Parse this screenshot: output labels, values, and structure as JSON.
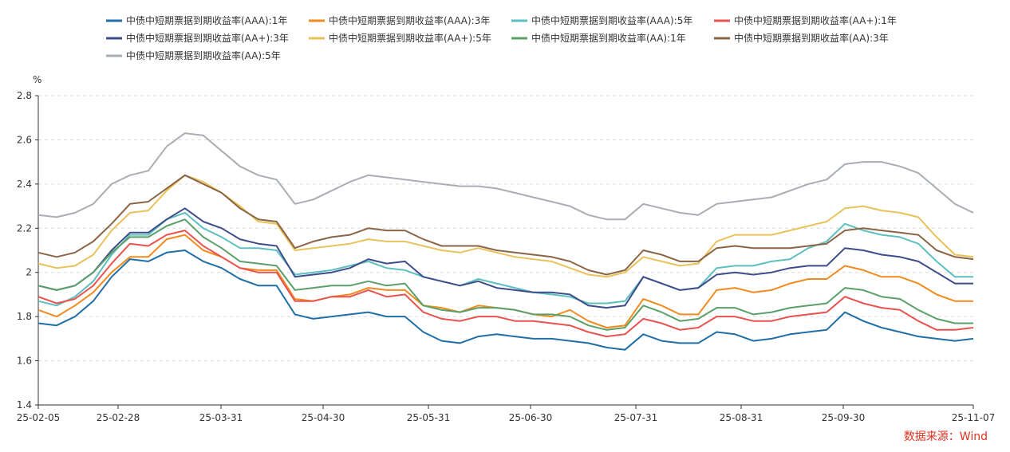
{
  "chart_data": {
    "type": "line",
    "y_unit": "%",
    "ylim": [
      1.4,
      2.8
    ],
    "y_ticks": [
      "1.4",
      "1.6",
      "1.8",
      "2",
      "2.2",
      "2.4",
      "2.6",
      "2.8"
    ],
    "x_ticks": [
      "25-02-05",
      "25-02-28",
      "25-03-31",
      "25-04-30",
      "25-05-31",
      "25-06-30",
      "25-07-31",
      "25-08-31",
      "25-09-30",
      "25-11-07"
    ],
    "grid": "horizontal-dashed",
    "legend_position": "top",
    "series": [
      {
        "name": "中债中短期票据到期收益率(AAA):1年",
        "color": "#1f6fa6",
        "values": [
          1.77,
          1.76,
          1.8,
          1.87,
          1.98,
          2.06,
          2.05,
          2.09,
          2.1,
          2.05,
          2.02,
          1.97,
          1.94,
          1.94,
          1.81,
          1.79,
          1.8,
          1.81,
          1.82,
          1.8,
          1.8,
          1.73,
          1.69,
          1.68,
          1.71,
          1.72,
          1.71,
          1.7,
          1.7,
          1.69,
          1.68,
          1.66,
          1.65,
          1.72,
          1.69,
          1.68,
          1.68,
          1.73,
          1.72,
          1.69,
          1.7,
          1.72,
          1.73,
          1.74,
          1.82,
          1.78,
          1.75,
          1.73,
          1.71,
          1.7,
          1.69,
          1.7
        ]
      },
      {
        "name": "中债中短期票据到期收益率(AAA):3年",
        "color": "#f28a1e",
        "values": [
          1.83,
          1.8,
          1.85,
          1.91,
          2.0,
          2.07,
          2.07,
          2.15,
          2.17,
          2.1,
          2.07,
          2.02,
          2.01,
          2.01,
          1.88,
          1.87,
          1.89,
          1.9,
          1.93,
          1.92,
          1.92,
          1.85,
          1.84,
          1.82,
          1.85,
          1.84,
          1.83,
          1.81,
          1.8,
          1.83,
          1.78,
          1.75,
          1.76,
          1.88,
          1.85,
          1.81,
          1.81,
          1.92,
          1.93,
          1.91,
          1.92,
          1.95,
          1.97,
          1.97,
          2.03,
          2.01,
          1.98,
          1.98,
          1.95,
          1.9,
          1.87,
          1.87
        ]
      },
      {
        "name": "中债中短期票据到期收益率(AAA):5年",
        "color": "#5dbfbf",
        "values": [
          1.87,
          1.85,
          1.89,
          1.96,
          2.08,
          2.17,
          2.17,
          2.24,
          2.27,
          2.2,
          2.16,
          2.11,
          2.11,
          2.1,
          1.99,
          2.0,
          2.01,
          2.03,
          2.05,
          2.02,
          2.01,
          1.98,
          1.96,
          1.94,
          1.97,
          1.95,
          1.93,
          1.91,
          1.9,
          1.89,
          1.86,
          1.86,
          1.87,
          1.98,
          1.95,
          1.92,
          1.93,
          2.02,
          2.03,
          2.03,
          2.05,
          2.06,
          2.11,
          2.14,
          2.22,
          2.19,
          2.17,
          2.16,
          2.13,
          2.05,
          1.98,
          1.98
        ]
      },
      {
        "name": "中债中短期票据到期收益率(AA+):1年",
        "color": "#e8534f",
        "values": [
          1.89,
          1.86,
          1.88,
          1.94,
          2.04,
          2.13,
          2.12,
          2.17,
          2.19,
          2.12,
          2.07,
          2.02,
          2.0,
          2.0,
          1.87,
          1.87,
          1.89,
          1.89,
          1.92,
          1.89,
          1.9,
          1.82,
          1.79,
          1.78,
          1.8,
          1.8,
          1.78,
          1.78,
          1.77,
          1.76,
          1.73,
          1.71,
          1.72,
          1.79,
          1.77,
          1.74,
          1.75,
          1.8,
          1.8,
          1.78,
          1.78,
          1.8,
          1.81,
          1.82,
          1.89,
          1.86,
          1.84,
          1.83,
          1.78,
          1.74,
          1.74,
          1.75
        ]
      },
      {
        "name": "中债中短期票据到期收益率(AA+):3年",
        "color": "#3f4c8a",
        "values": [
          1.94,
          1.92,
          1.94,
          2.0,
          2.1,
          2.18,
          2.18,
          2.24,
          2.29,
          2.23,
          2.2,
          2.15,
          2.13,
          2.12,
          1.98,
          1.99,
          2.0,
          2.02,
          2.06,
          2.04,
          2.05,
          1.98,
          1.96,
          1.94,
          1.96,
          1.93,
          1.92,
          1.91,
          1.91,
          1.9,
          1.85,
          1.84,
          1.85,
          1.98,
          1.95,
          1.92,
          1.93,
          1.99,
          2.0,
          1.99,
          2.0,
          2.02,
          2.03,
          2.03,
          2.11,
          2.1,
          2.08,
          2.07,
          2.05,
          2.0,
          1.95,
          1.95
        ]
      },
      {
        "name": "中债中短期票据到期收益率(AA+):5年",
        "color": "#e8c25a",
        "values": [
          2.04,
          2.02,
          2.03,
          2.08,
          2.19,
          2.27,
          2.28,
          2.37,
          2.44,
          2.41,
          2.36,
          2.3,
          2.23,
          2.22,
          2.1,
          2.11,
          2.12,
          2.13,
          2.15,
          2.14,
          2.14,
          2.12,
          2.1,
          2.09,
          2.11,
          2.09,
          2.07,
          2.06,
          2.05,
          2.02,
          1.99,
          1.98,
          2.0,
          2.07,
          2.05,
          2.03,
          2.04,
          2.14,
          2.17,
          2.17,
          2.17,
          2.19,
          2.21,
          2.23,
          2.29,
          2.3,
          2.28,
          2.27,
          2.25,
          2.16,
          2.08,
          2.07
        ]
      },
      {
        "name": "中债中短期票据到期收益率(AA):1年",
        "color": "#5aa068",
        "values": [
          1.94,
          1.92,
          1.94,
          2.0,
          2.09,
          2.16,
          2.16,
          2.21,
          2.24,
          2.16,
          2.11,
          2.05,
          2.04,
          2.03,
          1.92,
          1.93,
          1.94,
          1.94,
          1.96,
          1.94,
          1.95,
          1.85,
          1.83,
          1.82,
          1.84,
          1.84,
          1.83,
          1.81,
          1.81,
          1.8,
          1.76,
          1.74,
          1.75,
          1.85,
          1.82,
          1.78,
          1.79,
          1.84,
          1.84,
          1.81,
          1.82,
          1.84,
          1.85,
          1.86,
          1.93,
          1.92,
          1.89,
          1.88,
          1.83,
          1.79,
          1.77,
          1.77
        ]
      },
      {
        "name": "中债中短期票据到期收益率(AA):3年",
        "color": "#8b6446",
        "values": [
          2.09,
          2.07,
          2.09,
          2.14,
          2.22,
          2.31,
          2.32,
          2.38,
          2.44,
          2.4,
          2.36,
          2.29,
          2.24,
          2.23,
          2.11,
          2.14,
          2.16,
          2.17,
          2.2,
          2.19,
          2.19,
          2.15,
          2.12,
          2.12,
          2.12,
          2.1,
          2.09,
          2.08,
          2.07,
          2.05,
          2.01,
          1.99,
          2.01,
          2.1,
          2.08,
          2.05,
          2.05,
          2.11,
          2.12,
          2.11,
          2.11,
          2.11,
          2.12,
          2.13,
          2.19,
          2.2,
          2.19,
          2.18,
          2.17,
          2.1,
          2.07,
          2.06
        ]
      },
      {
        "name": "中债中短期票据到期收益率(AA):5年",
        "color": "#a9adb4",
        "values": [
          2.26,
          2.25,
          2.27,
          2.31,
          2.4,
          2.44,
          2.46,
          2.57,
          2.63,
          2.62,
          2.55,
          2.48,
          2.44,
          2.42,
          2.31,
          2.33,
          2.37,
          2.41,
          2.44,
          2.43,
          2.42,
          2.41,
          2.4,
          2.39,
          2.39,
          2.38,
          2.36,
          2.34,
          2.32,
          2.3,
          2.26,
          2.24,
          2.24,
          2.31,
          2.29,
          2.27,
          2.26,
          2.31,
          2.32,
          2.33,
          2.34,
          2.37,
          2.4,
          2.42,
          2.49,
          2.5,
          2.5,
          2.48,
          2.45,
          2.38,
          2.31,
          2.27
        ]
      }
    ],
    "source": "数据来源：Wind"
  }
}
